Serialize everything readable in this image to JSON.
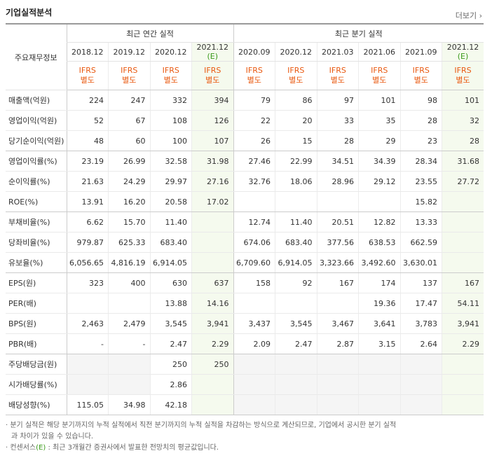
{
  "header": {
    "title": "기업실적분석",
    "more": "더보기"
  },
  "table": {
    "corner": "주요재무정보",
    "annual_label": "최근 연간 실적",
    "quarter_label": "최근 분기 실적",
    "annual_count": 4,
    "periods": [
      {
        "date": "2018.12",
        "standard": "IFRS",
        "basis": "별도"
      },
      {
        "date": "2019.12",
        "standard": "IFRS",
        "basis": "별도"
      },
      {
        "date": "2020.12",
        "standard": "IFRS",
        "basis": "별도"
      },
      {
        "date": "2021.12",
        "mark": "(E)",
        "standard": "IFRS",
        "basis": "별도"
      },
      {
        "date": "2020.09",
        "standard": "IFRS",
        "basis": "별도"
      },
      {
        "date": "2020.12",
        "standard": "IFRS",
        "basis": "별도"
      },
      {
        "date": "2021.03",
        "standard": "IFRS",
        "basis": "별도"
      },
      {
        "date": "2021.06",
        "standard": "IFRS",
        "basis": "별도"
      },
      {
        "date": "2021.09",
        "standard": "IFRS",
        "basis": "별도"
      },
      {
        "date": "2021.12",
        "mark": "(E)",
        "standard": "IFRS",
        "basis": "별도"
      }
    ],
    "groups": [
      [
        {
          "label": "매출액(억원)",
          "values": [
            "224",
            "247",
            "332",
            "394",
            "79",
            "86",
            "97",
            "101",
            "98",
            "101"
          ]
        },
        {
          "label": "영업이익(억원)",
          "values": [
            "52",
            "67",
            "108",
            "126",
            "22",
            "20",
            "33",
            "35",
            "28",
            "32"
          ]
        },
        {
          "label": "당기순이익(억원)",
          "values": [
            "48",
            "60",
            "100",
            "107",
            "26",
            "15",
            "28",
            "29",
            "23",
            "28"
          ]
        }
      ],
      [
        {
          "label": "영업이익률(%)",
          "values": [
            "23.19",
            "26.99",
            "32.58",
            "31.98",
            "27.46",
            "22.99",
            "34.51",
            "34.39",
            "28.34",
            "31.68"
          ]
        },
        {
          "label": "순이익률(%)",
          "values": [
            "21.63",
            "24.29",
            "29.97",
            "27.16",
            "32.76",
            "18.06",
            "28.96",
            "29.12",
            "23.55",
            "27.72"
          ]
        },
        {
          "label": "ROE(%)",
          "values": [
            "13.91",
            "16.20",
            "20.58",
            "17.02",
            null,
            null,
            null,
            null,
            "15.82",
            null
          ]
        }
      ],
      [
        {
          "label": "부채비율(%)",
          "values": [
            "6.62",
            "15.70",
            "11.40",
            null,
            "12.74",
            "11.40",
            "20.51",
            "12.82",
            "13.33",
            null
          ]
        },
        {
          "label": "당좌비율(%)",
          "values": [
            "979.87",
            "625.33",
            "683.40",
            null,
            "674.06",
            "683.40",
            "377.56",
            "638.53",
            "662.59",
            null
          ]
        },
        {
          "label": "유보율(%)",
          "values": [
            "6,056.65",
            "4,816.19",
            "6,914.05",
            null,
            "6,709.60",
            "6,914.05",
            "3,323.66",
            "3,492.60",
            "3,630.01",
            null
          ]
        }
      ],
      [
        {
          "label": "EPS(원)",
          "values": [
            "323",
            "400",
            "630",
            "637",
            "158",
            "92",
            "167",
            "174",
            "137",
            "167"
          ]
        },
        {
          "label": "PER(배)",
          "values": [
            null,
            null,
            "13.88",
            "14.16",
            null,
            null,
            null,
            "19.36",
            "17.47",
            "54.11"
          ]
        },
        {
          "label": "BPS(원)",
          "values": [
            "2,463",
            "2,479",
            "3,545",
            "3,941",
            "3,437",
            "3,545",
            "3,467",
            "3,641",
            "3,783",
            "3,941"
          ]
        },
        {
          "label": "PBR(배)",
          "values": [
            "-",
            "-",
            "2.47",
            "2.29",
            "2.09",
            "2.47",
            "2.87",
            "3.15",
            "2.64",
            "2.29"
          ]
        }
      ],
      [
        {
          "label": "주당배당금(원)",
          "values": [
            null,
            null,
            "250",
            "250",
            null,
            null,
            null,
            null,
            null,
            null
          ]
        },
        {
          "label": "시가배당률(%)",
          "values": [
            null,
            null,
            "2.86",
            null,
            null,
            null,
            null,
            null,
            null,
            null
          ]
        },
        {
          "label": "배당성향(%)",
          "values": [
            "115.05",
            "34.98",
            "42.18",
            null,
            null,
            null,
            null,
            null,
            null,
            null
          ]
        }
      ]
    ]
  },
  "notes": [
    {
      "text": "분기 실적은 해당 분기까지의 누적 실적에서 직전 분기까지의 누적 실적을 차감하는 방식으로 계산되므로, 기업에서 공시한 분기 실적과 차이가 있을 수 있습니다."
    },
    {
      "prefix": "컨센서스",
      "mark": "(E)",
      "text": " : 최근 3개월간 증권사에서 발표한 전망치의 평균값입니다."
    }
  ]
}
